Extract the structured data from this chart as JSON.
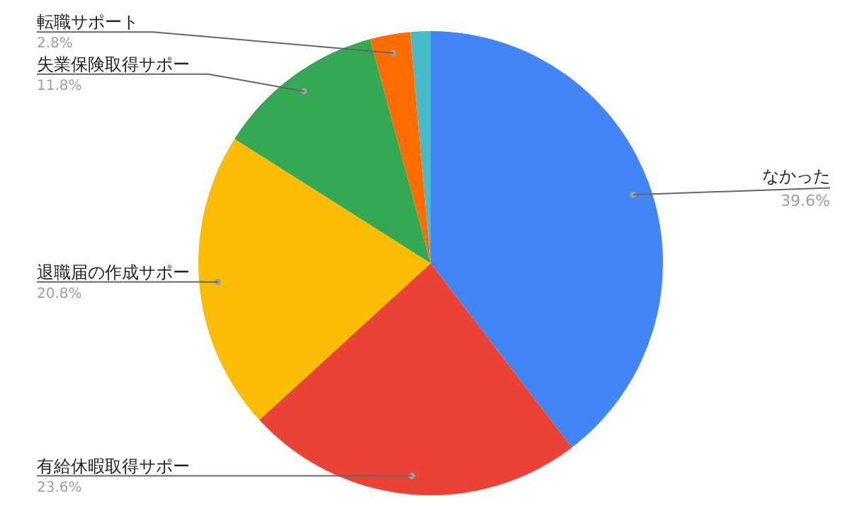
{
  "chart_data": {
    "type": "pie",
    "categories": [
      "なかった",
      "有給休暇取得サポー",
      "退職届の作成サポー",
      "失業保険取得サポー",
      "転職サポート",
      null
    ],
    "values": [
      39.6,
      23.6,
      20.8,
      11.8,
      2.8,
      1.4
    ],
    "colors": [
      "#4285f4",
      "#ea4335",
      "#fbbc04",
      "#34a853",
      "#ff6d01",
      "#46bdc6"
    ],
    "value_labels": [
      "39.6%",
      "23.6%",
      "20.8%",
      "11.8%",
      "2.8%",
      null
    ],
    "legend": false
  }
}
